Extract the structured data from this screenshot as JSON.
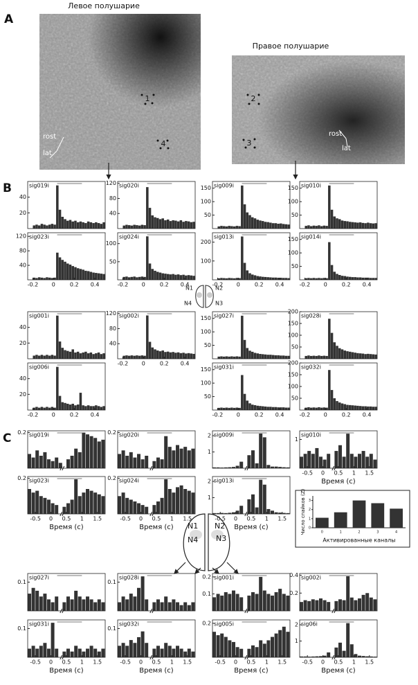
{
  "panel_a": {
    "label": "A",
    "left": {
      "title": "Левое полушарие",
      "sites": [
        "1",
        "4"
      ],
      "rost": "rost",
      "lat": "lat"
    },
    "right": {
      "title": "Правое полушарие",
      "sites": [
        "2",
        "3"
      ],
      "rost": "rost",
      "lat": "lat"
    }
  },
  "panel_b": {
    "label": "B",
    "xlim": [
      -0.25,
      0.5
    ],
    "xticks": [
      -0.2,
      0,
      0.2,
      0.4
    ],
    "bins": [
      -0.2,
      -0.175,
      -0.15,
      -0.125,
      -0.1,
      -0.075,
      -0.05,
      -0.025,
      0,
      0.025,
      0.05,
      0.075,
      0.1,
      0.125,
      0.15,
      0.175,
      0.2,
      0.225,
      0.25,
      0.275,
      0.3,
      0.325,
      0.35,
      0.375,
      0.4,
      0.425,
      0.45,
      0.475,
      0.5
    ],
    "inset": [
      "N1",
      "N2",
      "N3",
      "N4"
    ],
    "plots": [
      {
        "name": "sig019i",
        "ylim": [
          0,
          60
        ],
        "yticks": [
          20,
          40
        ],
        "values": [
          4,
          5,
          4,
          6,
          5,
          4,
          5,
          6,
          5,
          55,
          24,
          15,
          12,
          10,
          11,
          9,
          10,
          8,
          9,
          8,
          7,
          9,
          8,
          7,
          8,
          7,
          6,
          8
        ]
      },
      {
        "name": "sig020i",
        "ylim": [
          0,
          125
        ],
        "yticks": [
          40,
          80,
          120
        ],
        "values": [
          8,
          10,
          9,
          8,
          10,
          9,
          8,
          10,
          9,
          110,
          55,
          35,
          30,
          28,
          25,
          27,
          22,
          24,
          20,
          22,
          21,
          19,
          22,
          18,
          20,
          19,
          17,
          18
        ]
      },
      {
        "name": "sig009i",
        "ylim": [
          0,
          175
        ],
        "yticks": [
          50,
          100,
          150
        ],
        "values": [
          8,
          10,
          9,
          8,
          10,
          9,
          8,
          10,
          9,
          160,
          90,
          60,
          50,
          42,
          38,
          33,
          30,
          28,
          25,
          24,
          22,
          20,
          20,
          18,
          19,
          17,
          16,
          15
        ]
      },
      {
        "name": "sig010i",
        "ylim": [
          0,
          175
        ],
        "yticks": [
          50,
          100,
          150
        ],
        "values": [
          10,
          12,
          9,
          11,
          10,
          12,
          9,
          11,
          10,
          160,
          70,
          45,
          38,
          35,
          30,
          28,
          27,
          25,
          24,
          23,
          22,
          23,
          21,
          20,
          22,
          20,
          19,
          20
        ]
      },
      {
        "name": "sig023i",
        "ylim": [
          0,
          130
        ],
        "yticks": [
          40,
          80,
          120
        ],
        "values": [
          6,
          5,
          7,
          6,
          5,
          7,
          6,
          5,
          6,
          75,
          62,
          55,
          50,
          45,
          42,
          38,
          35,
          32,
          30,
          28,
          25,
          24,
          22,
          20,
          19,
          18,
          17,
          16
        ]
      },
      {
        "name": "sig024i",
        "ylim": [
          0,
          130
        ],
        "yticks": [
          50,
          100
        ],
        "values": [
          8,
          9,
          7,
          8,
          9,
          7,
          8,
          9,
          8,
          120,
          45,
          30,
          25,
          22,
          20,
          18,
          17,
          16,
          15,
          16,
          14,
          15,
          13,
          14,
          12,
          13,
          12,
          11
        ]
      },
      {
        "name": "sig013i",
        "ylim": [
          0,
          250
        ],
        "yticks": [
          100,
          200
        ],
        "values": [
          8,
          10,
          9,
          8,
          10,
          9,
          8,
          10,
          9,
          230,
          90,
          50,
          35,
          28,
          24,
          20,
          18,
          16,
          15,
          14,
          13,
          12,
          12,
          11,
          11,
          10,
          10,
          9
        ]
      },
      {
        "name": "sig014i",
        "ylim": [
          0,
          175
        ],
        "yticks": [
          50,
          100,
          150
        ],
        "values": [
          6,
          7,
          6,
          7,
          6,
          7,
          6,
          7,
          6,
          140,
          55,
          30,
          22,
          18,
          15,
          14,
          12,
          11,
          10,
          10,
          9,
          9,
          8,
          8,
          8,
          7,
          7,
          7
        ]
      },
      {
        "name": "sig001i",
        "ylim": [
          0,
          60
        ],
        "yticks": [
          20,
          40
        ],
        "values": [
          4,
          5,
          4,
          5,
          4,
          5,
          4,
          5,
          4,
          55,
          22,
          14,
          11,
          10,
          9,
          12,
          8,
          9,
          7,
          8,
          9,
          7,
          8,
          6,
          7,
          8,
          6,
          7
        ]
      },
      {
        "name": "sig002i",
        "ylim": [
          0,
          125
        ],
        "yticks": [
          40,
          80,
          120
        ],
        "values": [
          8,
          9,
          8,
          9,
          8,
          9,
          8,
          9,
          8,
          115,
          45,
          30,
          25,
          22,
          20,
          22,
          18,
          19,
          17,
          18,
          16,
          17,
          15,
          16,
          14,
          15,
          14,
          13
        ]
      },
      {
        "name": "sig027i",
        "ylim": [
          0,
          175
        ],
        "yticks": [
          50,
          100,
          150
        ],
        "values": [
          8,
          9,
          8,
          9,
          8,
          9,
          8,
          9,
          8,
          160,
          70,
          40,
          30,
          26,
          22,
          20,
          18,
          17,
          16,
          15,
          15,
          14,
          13,
          13,
          12,
          12,
          11,
          11
        ]
      },
      {
        "name": "sig028i",
        "ylim": [
          0,
          200
        ],
        "yticks": [
          50,
          100,
          150,
          200
        ],
        "values": [
          12,
          14,
          12,
          13,
          12,
          14,
          12,
          13,
          12,
          170,
          110,
          70,
          55,
          45,
          40,
          35,
          32,
          30,
          28,
          26,
          24,
          23,
          22,
          20,
          21,
          20,
          19,
          18
        ]
      },
      {
        "name": "sig006i",
        "ylim": [
          0,
          60
        ],
        "yticks": [
          20,
          40
        ],
        "values": [
          3,
          4,
          3,
          4,
          3,
          4,
          3,
          4,
          3,
          55,
          18,
          10,
          9,
          8,
          7,
          8,
          6,
          7,
          22,
          6,
          5,
          6,
          5,
          5,
          6,
          5,
          4,
          5
        ]
      },
      {
        "name": "sig031i",
        "ylim": [
          0,
          175
        ],
        "yticks": [
          50,
          100,
          150
        ],
        "values": [
          8,
          9,
          8,
          9,
          8,
          9,
          8,
          9,
          8,
          130,
          60,
          35,
          25,
          20,
          18,
          16,
          15,
          14,
          13,
          12,
          12,
          11,
          11,
          10,
          10,
          10,
          9,
          9
        ]
      },
      {
        "name": "sig032i",
        "ylim": [
          0,
          200
        ],
        "yticks": [
          50,
          100,
          150,
          200
        ],
        "values": [
          10,
          12,
          10,
          11,
          10,
          12,
          10,
          11,
          10,
          170,
          85,
          50,
          38,
          32,
          28,
          25,
          22,
          21,
          20,
          19,
          18,
          17,
          16,
          16,
          15,
          15,
          14,
          14
        ]
      }
    ]
  },
  "panel_c": {
    "label": "C",
    "xlabel": "Время (с)",
    "xlim": [
      -0.75,
      1.75
    ],
    "xticks": [
      -0.5,
      0,
      0.5,
      1,
      1.5
    ],
    "bins": [
      -0.75,
      -0.625,
      -0.5,
      -0.375,
      -0.25,
      -0.125,
      0,
      0.125,
      0.25,
      0.375,
      0.5,
      0.625,
      0.75,
      0.875,
      1,
      1.125,
      1.25,
      1.375,
      1.5,
      1.625,
      1.75
    ],
    "inset": [
      "N1",
      "N2",
      "N3",
      "N4"
    ],
    "plots": [
      {
        "name": "sig019i",
        "ylim": [
          0,
          0.21
        ],
        "yticks": [
          0.2
        ],
        "values": [
          0.08,
          0.06,
          0.1,
          0.07,
          0.09,
          0.05,
          0.04,
          0.06,
          0.03,
          0,
          0.05,
          0.07,
          0.11,
          0.09,
          0.2,
          0.19,
          0.18,
          0.17,
          0.15,
          0.16
        ]
      },
      {
        "name": "sig020i",
        "ylim": [
          0,
          0.21
        ],
        "yticks": [
          0.2
        ],
        "values": [
          0.08,
          0.1,
          0.07,
          0.09,
          0.06,
          0.08,
          0.05,
          0.07,
          0,
          0.04,
          0.06,
          0.05,
          0.18,
          0.12,
          0.1,
          0.13,
          0.11,
          0.12,
          0.1,
          0.11
        ]
      },
      {
        "name": "sig009i",
        "ylim": [
          0,
          2.3
        ],
        "yticks": [
          1,
          2
        ],
        "values": [
          0.05,
          0.05,
          0.04,
          0.05,
          0.06,
          0.08,
          0.15,
          0.4,
          0,
          0.8,
          1.1,
          0.3,
          2.2,
          1.9,
          0.2,
          0.1,
          0.1,
          0.08,
          0.06,
          0.05
        ]
      },
      {
        "name": "sig010i",
        "ylim": [
          0,
          1.3
        ],
        "yticks": [
          1
        ],
        "values": [
          0.4,
          0.5,
          0.6,
          0.5,
          0.7,
          0.4,
          0.3,
          0.5,
          0,
          0.6,
          0.8,
          0.4,
          1.2,
          0.5,
          0.4,
          0.5,
          0.6,
          0.4,
          0.5,
          0.3
        ]
      },
      {
        "name": "sig023i",
        "ylim": [
          0,
          0.21
        ],
        "yticks": [
          0.2
        ],
        "values": [
          0.14,
          0.12,
          0.13,
          0.1,
          0.09,
          0.08,
          0.06,
          0.05,
          0,
          0.04,
          0.06,
          0.08,
          0.2,
          0.1,
          0.12,
          0.14,
          0.13,
          0.12,
          0.11,
          0.1
        ]
      },
      {
        "name": "sig024i",
        "ylim": [
          0,
          0.21
        ],
        "yticks": [
          0.2
        ],
        "values": [
          0.1,
          0.12,
          0.09,
          0.08,
          0.07,
          0.06,
          0.05,
          0.04,
          0,
          0.05,
          0.07,
          0.09,
          0.2,
          0.14,
          0.12,
          0.15,
          0.16,
          0.14,
          0.13,
          0.12
        ]
      },
      {
        "name": "sig013i",
        "ylim": [
          0,
          2.3
        ],
        "yticks": [
          1,
          2
        ],
        "values": [
          0.05,
          0.05,
          0.06,
          0.05,
          0.07,
          0.1,
          0.2,
          0.5,
          0,
          0.9,
          1.2,
          0.4,
          2.1,
          1.8,
          0.3,
          0.2,
          0.1,
          0.08,
          0.06,
          0.05
        ]
      },
      {
        "name": "sig027i",
        "ylim": [
          0,
          0.13
        ],
        "yticks": [
          0.1
        ],
        "values": [
          0.06,
          0.08,
          0.07,
          0.05,
          0.06,
          0.04,
          0.03,
          0.05,
          0,
          0.03,
          0.05,
          0.04,
          0.07,
          0.05,
          0.04,
          0.05,
          0.04,
          0.03,
          0.04,
          0.03
        ]
      },
      {
        "name": "sig028i",
        "ylim": [
          0,
          0.13
        ],
        "yticks": [
          0.1
        ],
        "values": [
          0.03,
          0.05,
          0.04,
          0.06,
          0.05,
          0.08,
          0.12,
          0.04,
          0,
          0.03,
          0.04,
          0.03,
          0.05,
          0.03,
          0.04,
          0.03,
          0.02,
          0.03,
          0.02,
          0.03
        ]
      },
      {
        "name": "sig001i",
        "ylim": [
          0,
          0.22
        ],
        "yticks": [
          0.1,
          0.2
        ],
        "values": [
          0.08,
          0.1,
          0.09,
          0.11,
          0.1,
          0.12,
          0.1,
          0.08,
          0,
          0.09,
          0.11,
          0.1,
          0.2,
          0.12,
          0.1,
          0.09,
          0.11,
          0.13,
          0.1,
          0.09
        ]
      },
      {
        "name": "sig002i",
        "ylim": [
          0,
          0.42
        ],
        "yticks": [
          0.2,
          0.4
        ],
        "values": [
          0.1,
          0.12,
          0.11,
          0.13,
          0.12,
          0.14,
          0.12,
          0.1,
          0,
          0.11,
          0.13,
          0.12,
          0.4,
          0.15,
          0.12,
          0.14,
          0.18,
          0.2,
          0.15,
          0.13
        ]
      },
      {
        "name": "sig031i",
        "ylim": [
          0,
          0.13
        ],
        "yticks": [
          0.1
        ],
        "values": [
          0.03,
          0.04,
          0.03,
          0.04,
          0.05,
          0.03,
          0.12,
          0.03,
          0,
          0.02,
          0.03,
          0.02,
          0.04,
          0.03,
          0.02,
          0.03,
          0.04,
          0.03,
          0.02,
          0.03
        ]
      },
      {
        "name": "sig032i",
        "ylim": [
          0,
          0.13
        ],
        "yticks": [
          0.1
        ],
        "values": [
          0.04,
          0.05,
          0.04,
          0.06,
          0.05,
          0.07,
          0.09,
          0.05,
          0,
          0.03,
          0.04,
          0.03,
          0.05,
          0.04,
          0.03,
          0.04,
          0.03,
          0.02,
          0.03,
          0.02
        ]
      },
      {
        "name": "sig005i",
        "ylim": [
          0,
          0.22
        ],
        "yticks": [
          0.2
        ],
        "values": [
          0.15,
          0.13,
          0.14,
          0.12,
          0.1,
          0.09,
          0.06,
          0.05,
          0,
          0.05,
          0.07,
          0.06,
          0.1,
          0.08,
          0.1,
          0.12,
          0.14,
          0.16,
          0.18,
          0.15
        ]
      },
      {
        "name": "sig06i",
        "ylim": [
          0,
          2.3
        ],
        "yticks": [
          1,
          2
        ],
        "values": [
          0.05,
          0.05,
          0.04,
          0.05,
          0.06,
          0.07,
          0.1,
          0.3,
          0,
          0.6,
          0.9,
          0.4,
          2.1,
          0.8,
          0.2,
          0.1,
          0.08,
          0.06,
          0.05,
          0.04
        ]
      }
    ]
  },
  "chart_data": {
    "type": "bar",
    "ylabel": "Число спайков (Z)",
    "xlabel": "Активированные каналы",
    "categories": [
      "0",
      "1",
      "2",
      "3",
      "4"
    ],
    "values": [
      1.1,
      1.7,
      3.0,
      2.7,
      2.1
    ],
    "color": "#333333",
    "ylim": [
      0,
      3.5
    ],
    "yticks": [
      0,
      1,
      2,
      3
    ]
  }
}
